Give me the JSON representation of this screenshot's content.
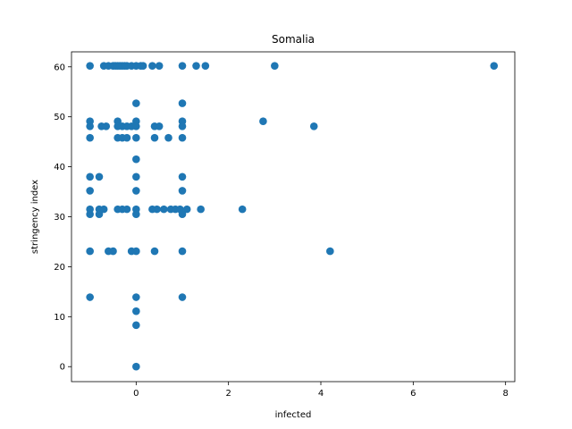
{
  "chart_data": {
    "type": "scatter",
    "title": "Somalia",
    "xlabel": "infected",
    "ylabel": "stringency index",
    "xlim": [
      -1.4,
      8.2
    ],
    "ylim": [
      -3,
      63
    ],
    "xticks": [
      0,
      2,
      4,
      6,
      8
    ],
    "yticks": [
      0,
      10,
      20,
      30,
      40,
      50,
      60
    ],
    "grid": false,
    "marker_color": "#1f77b4",
    "points": [
      {
        "x": -1,
        "y": 60.2
      },
      {
        "x": -0.7,
        "y": 60.2
      },
      {
        "x": -0.6,
        "y": 60.2
      },
      {
        "x": -0.5,
        "y": 60.2
      },
      {
        "x": -0.45,
        "y": 60.2
      },
      {
        "x": -0.4,
        "y": 60.2
      },
      {
        "x": -0.35,
        "y": 60.2
      },
      {
        "x": -0.3,
        "y": 60.2
      },
      {
        "x": -0.25,
        "y": 60.2
      },
      {
        "x": -0.2,
        "y": 60.2
      },
      {
        "x": -0.1,
        "y": 60.2
      },
      {
        "x": 0,
        "y": 60.2
      },
      {
        "x": 0.1,
        "y": 60.2
      },
      {
        "x": 0.15,
        "y": 60.2
      },
      {
        "x": 0.35,
        "y": 60.2
      },
      {
        "x": 0.5,
        "y": 60.2
      },
      {
        "x": 1,
        "y": 60.2
      },
      {
        "x": 1.3,
        "y": 60.2
      },
      {
        "x": 1.5,
        "y": 60.2
      },
      {
        "x": 3,
        "y": 60.2
      },
      {
        "x": 7.75,
        "y": 60.2
      },
      {
        "x": 0,
        "y": 52.7
      },
      {
        "x": 1,
        "y": 52.7
      },
      {
        "x": -1,
        "y": 49.1
      },
      {
        "x": -0.4,
        "y": 49.1
      },
      {
        "x": 0,
        "y": 49.1
      },
      {
        "x": 1,
        "y": 49.1
      },
      {
        "x": 2.75,
        "y": 49.1
      },
      {
        "x": -1,
        "y": 48.1
      },
      {
        "x": -0.75,
        "y": 48.1
      },
      {
        "x": -0.65,
        "y": 48.1
      },
      {
        "x": -0.4,
        "y": 48.1
      },
      {
        "x": -0.3,
        "y": 48.1
      },
      {
        "x": -0.2,
        "y": 48.1
      },
      {
        "x": -0.1,
        "y": 48.1
      },
      {
        "x": 0,
        "y": 48.1
      },
      {
        "x": 0.4,
        "y": 48.1
      },
      {
        "x": 0.5,
        "y": 48.1
      },
      {
        "x": 1,
        "y": 48.1
      },
      {
        "x": 3.85,
        "y": 48.1
      },
      {
        "x": -1,
        "y": 45.8
      },
      {
        "x": -0.4,
        "y": 45.8
      },
      {
        "x": -0.3,
        "y": 45.8
      },
      {
        "x": -0.2,
        "y": 45.8
      },
      {
        "x": 0,
        "y": 45.8
      },
      {
        "x": 0.4,
        "y": 45.8
      },
      {
        "x": 0.7,
        "y": 45.8
      },
      {
        "x": 1,
        "y": 45.8
      },
      {
        "x": 0,
        "y": 41.5
      },
      {
        "x": -1,
        "y": 38
      },
      {
        "x": -0.8,
        "y": 38
      },
      {
        "x": 0,
        "y": 38
      },
      {
        "x": 1,
        "y": 38
      },
      {
        "x": -1,
        "y": 35.2
      },
      {
        "x": 0,
        "y": 35.2
      },
      {
        "x": 1,
        "y": 35.2
      },
      {
        "x": -1,
        "y": 31.5
      },
      {
        "x": -0.8,
        "y": 31.5
      },
      {
        "x": -0.7,
        "y": 31.5
      },
      {
        "x": -0.4,
        "y": 31.5
      },
      {
        "x": -0.3,
        "y": 31.5
      },
      {
        "x": -0.2,
        "y": 31.5
      },
      {
        "x": 0,
        "y": 31.5
      },
      {
        "x": 0.35,
        "y": 31.5
      },
      {
        "x": 0.45,
        "y": 31.5
      },
      {
        "x": 0.6,
        "y": 31.5
      },
      {
        "x": 0.75,
        "y": 31.5
      },
      {
        "x": 0.85,
        "y": 31.5
      },
      {
        "x": 0.95,
        "y": 31.5
      },
      {
        "x": 1.1,
        "y": 31.5
      },
      {
        "x": 1.4,
        "y": 31.5
      },
      {
        "x": 2.3,
        "y": 31.5
      },
      {
        "x": -1,
        "y": 30.5
      },
      {
        "x": -0.8,
        "y": 30.5
      },
      {
        "x": 0,
        "y": 30.5
      },
      {
        "x": 1,
        "y": 30.5
      },
      {
        "x": -1,
        "y": 23.1
      },
      {
        "x": -0.6,
        "y": 23.1
      },
      {
        "x": -0.5,
        "y": 23.1
      },
      {
        "x": -0.1,
        "y": 23.1
      },
      {
        "x": 0,
        "y": 23.1
      },
      {
        "x": 0.4,
        "y": 23.1
      },
      {
        "x": 1,
        "y": 23.1
      },
      {
        "x": 4.2,
        "y": 23.1
      },
      {
        "x": -1,
        "y": 13.9
      },
      {
        "x": 0,
        "y": 13.9
      },
      {
        "x": 1,
        "y": 13.9
      },
      {
        "x": 0,
        "y": 11.1
      },
      {
        "x": 0,
        "y": 8.3
      },
      {
        "x": 0,
        "y": 0
      }
    ]
  }
}
